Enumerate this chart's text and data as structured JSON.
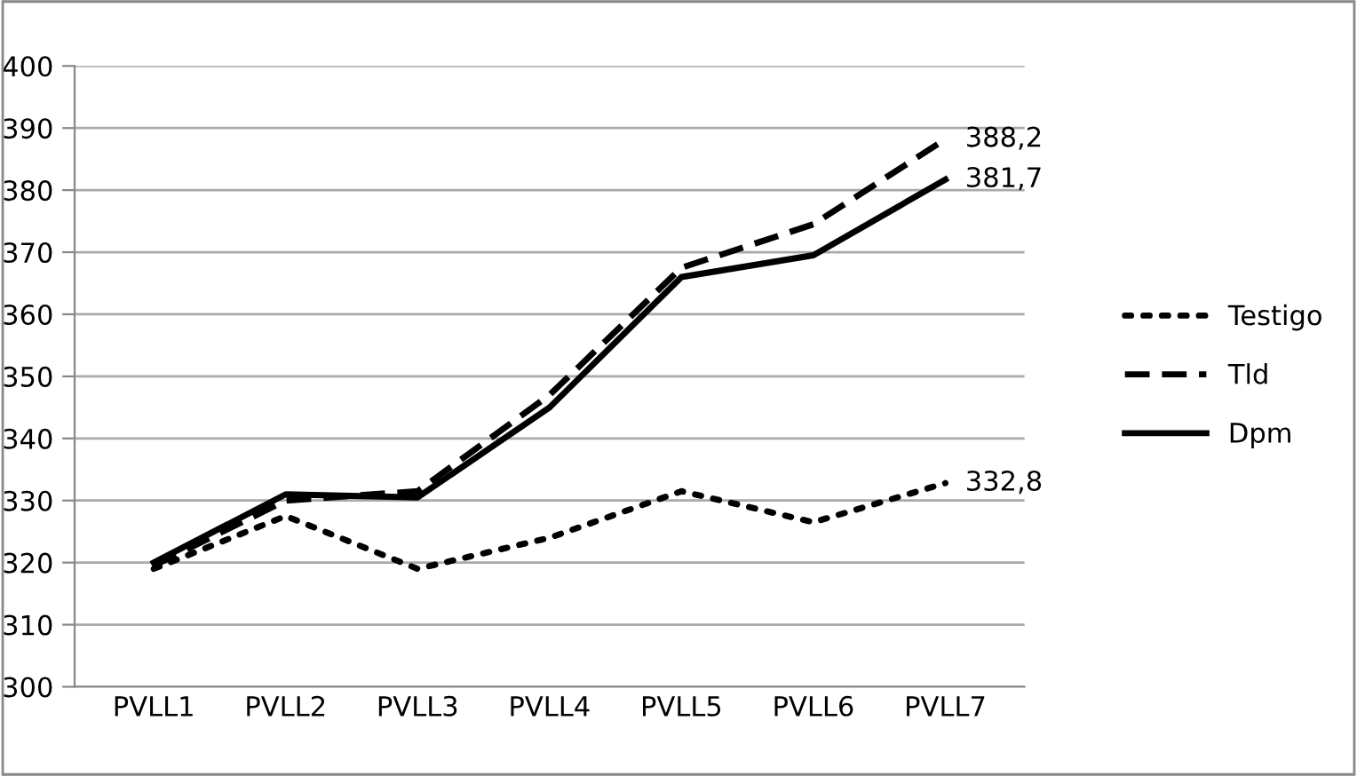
{
  "chart_data": {
    "type": "line",
    "categories": [
      "PVLL1",
      "PVLL2",
      "PVLL3",
      "PVLL4",
      "PVLL5",
      "PVLL6",
      "PVLL7"
    ],
    "series": [
      {
        "name": "Testigo",
        "color": "#000000",
        "line_style": "dotted",
        "values": [
          319,
          327.5,
          319,
          324,
          331.5,
          326.5,
          332.8
        ],
        "value_labels": [
          null,
          null,
          null,
          null,
          null,
          null,
          "332,8"
        ]
      },
      {
        "name": "Tld",
        "color": "#000000",
        "line_style": "dashed",
        "values": [
          319.5,
          330,
          331.5,
          347,
          367.5,
          374.5,
          388.2
        ],
        "value_labels": [
          null,
          null,
          null,
          null,
          null,
          null,
          "388,2"
        ]
      },
      {
        "name": "Dpm",
        "color": "#000000",
        "line_style": "solid",
        "values": [
          320,
          331,
          330.5,
          345,
          366,
          369.5,
          381.7
        ],
        "value_labels": [
          null,
          null,
          null,
          null,
          null,
          null,
          "381,7"
        ]
      }
    ],
    "ylim": [
      300,
      400
    ],
    "yticks": [
      300,
      310,
      320,
      330,
      340,
      350,
      360,
      370,
      380,
      390,
      400
    ],
    "grid": "y",
    "legend": "right",
    "marker": "none"
  }
}
